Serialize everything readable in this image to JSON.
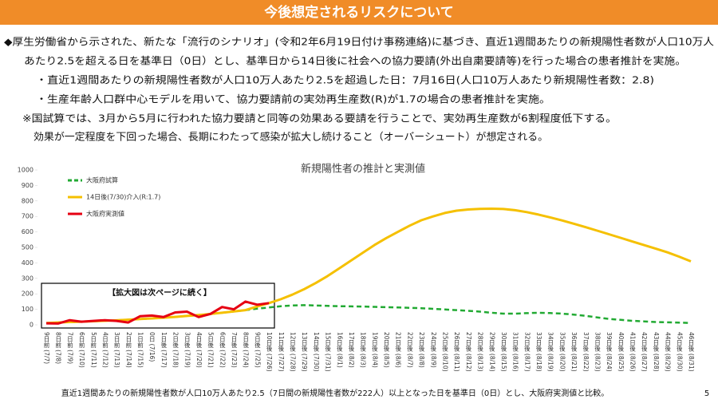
{
  "header": {
    "title": "今後想定されるリスクについて"
  },
  "body": [
    "◆厚生労働省から示された、新たな「流行のシナリオ」(令和2年6月19日付け事務連絡)に基づき、直近1週間あたりの新規陽性者数が人口10万人",
    "あたり2.5を超える日を基準日（0日）とし、基準日から14日後に社会への協力要請(外出自粛要請等)を行った場合の患者推計を実施。",
    "・直近1週間あたりの新規陽性者数が人口10万人あたり2.5を超過した日：7月16日(人口10万人あたり新規陽性者数：2.8)",
    "・生産年齢人口群中心モデルを用いて、協力要請前の実効再生産数(R)が1.7の場合の患者推計を実施。",
    "※国試算では、3月から5月に行われた協力要請と同等の効果ある要請を行うことで、実効再生産数が6割程度低下する。",
    "効果が一定程度を下回った場合、長期にわたって感染が拡大し続けること（オーバーシュート）が想定される。"
  ],
  "chart_data": {
    "type": "line",
    "title": "新規陽性者の推計と実測値",
    "annotation": "【拡大図は次ページに続く】",
    "categories": [
      "9日前 (7/7)",
      "8日前 (7/8)",
      "7日前 (7/9)",
      "6日前 (7/10)",
      "5日前 (7/11)",
      "4日前 (7/12)",
      "3日前 (7/13)",
      "2日前 (7/14)",
      "1日前 (7/15)",
      "0日 (7/16)",
      "1日後 (7/17)",
      "2日後 (7/18)",
      "3日後 (7/19)",
      "4日後 (7/20)",
      "5日後 (7/21)",
      "6日後 (7/22)",
      "7日後 (7/23)",
      "8日後 (7/24)",
      "9日後 (7/25)",
      "10日後 (7/26)",
      "11日後 (7/27)",
      "12日後 (7/28)",
      "13日後 (7/29)",
      "14日後 (7/30)",
      "15日後 (7/31)",
      "16日後 (8/1)",
      "17日後 (8/2)",
      "18日後 (8/3)",
      "19日後 (8/4)",
      "20日後 (8/5)",
      "21日後 (8/6)",
      "22日後 (8/7)",
      "23日後 (8/8)",
      "24日後 (8/9)",
      "25日後 (8/10)",
      "26日後 (8/11)",
      "27日後 (8/12)",
      "28日後 (8/13)",
      "29日後 (8/14)",
      "30日後 (8/15)",
      "31日後 (8/16)",
      "32日後 (8/17)",
      "33日後 (8/18)",
      "34日後 (8/19)",
      "35日後 (8/20)",
      "36日後 (8/21)",
      "37日後 (8/22)",
      "38日後 (8/23)",
      "39日後 (8/24)",
      "40日後 (8/25)",
      "41日後 (8/26)",
      "42日後 (8/27)",
      "43日後 (8/28)",
      "44日後 (8/29)",
      "45日後 (8/30)",
      "46日後 (8/31)"
    ],
    "series": [
      {
        "name": "大阪府試算",
        "color": "#22aa33",
        "dashed": true,
        "values": [
          12,
          15,
          18,
          20,
          23,
          26,
          29,
          33,
          37,
          41,
          46,
          51,
          57,
          63,
          70,
          78,
          86,
          95,
          104,
          112,
          120,
          125,
          127,
          125,
          122,
          120,
          119,
          118,
          116,
          114,
          112,
          110,
          107,
          103,
          99,
          95,
          90,
          85,
          78,
          72,
          72,
          75,
          78,
          76,
          72,
          66,
          58,
          48,
          38,
          32,
          26,
          22,
          18,
          16,
          14,
          12
        ]
      },
      {
        "name": "14日後(7/30)介入(R:1.7)",
        "color": "#f5c000",
        "values": [
          12,
          15,
          18,
          20,
          23,
          26,
          29,
          33,
          37,
          41,
          46,
          51,
          57,
          63,
          70,
          78,
          86,
          95,
          118,
          140,
          165,
          195,
          230,
          270,
          315,
          365,
          415,
          465,
          515,
          560,
          600,
          640,
          675,
          700,
          722,
          737,
          745,
          749,
          750,
          748,
          740,
          728,
          712,
          694,
          674,
          653,
          631,
          608,
          585,
          562,
          538,
          515,
          492,
          468,
          440,
          410
        ]
      },
      {
        "name": "大阪府実測値",
        "color": "#e60012",
        "values": [
          10,
          8,
          30,
          20,
          25,
          30,
          25,
          15,
          55,
          60,
          50,
          80,
          85,
          50,
          70,
          115,
          100,
          150,
          130,
          140,
          null,
          null,
          null,
          null,
          null,
          null,
          null,
          null,
          null,
          null,
          null,
          null,
          null,
          null,
          null,
          null,
          null,
          null,
          null,
          null,
          null,
          null,
          null,
          null,
          null,
          null,
          null,
          null,
          null,
          null,
          null,
          null,
          null,
          null,
          null,
          null
        ]
      }
    ],
    "ylim": [
      0,
      1000
    ],
    "yticks": [
      0,
      100,
      200,
      300,
      400,
      500,
      600,
      700,
      800,
      900,
      1000
    ],
    "grid": false
  },
  "footnote": "直近1週間あたりの新規陽性者数が人口10万人あたり2.5（7日間の新規陽性者数が222人）以上となった日を基準日（0日）とし、大阪府実測値と比較。",
  "page_number": "5"
}
